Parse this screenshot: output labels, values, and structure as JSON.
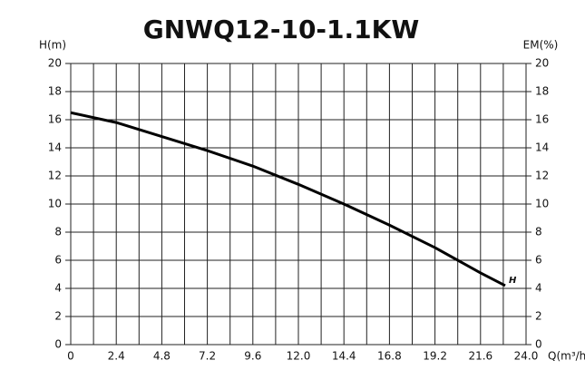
{
  "chart_data": {
    "type": "line",
    "title": "GNWQ12-10-1.1KW",
    "y_label": "H(m)",
    "y2_label": "EM(%)",
    "x_label": "Q(m³/h)",
    "xlim": [
      0,
      24
    ],
    "xticks": [
      0,
      2.4,
      4.8,
      7.2,
      9.6,
      {
        "value": 12,
        "label": "12.0"
      },
      14.4,
      16.8,
      19.2,
      21.6,
      {
        "value": 24,
        "label": "24.0"
      }
    ],
    "xminor": [
      1.2,
      3.6,
      6,
      8.4,
      10.8,
      13.2,
      15.6,
      18,
      20.4,
      22.8
    ],
    "ylim": [
      0,
      20
    ],
    "yticks": [
      0,
      2,
      4,
      6,
      8,
      10,
      12,
      14,
      16,
      18,
      20
    ],
    "y2lim": [
      0,
      20
    ],
    "y2ticks": [
      0,
      2,
      4,
      6,
      8,
      10,
      12,
      14,
      16,
      18,
      20
    ],
    "grid": true,
    "x": [
      0,
      2.4,
      4.8,
      7.2,
      9.6,
      12,
      14.4,
      16.8,
      19.2,
      21.6,
      22.9
    ],
    "series": [
      {
        "name": "H",
        "color": "#000000",
        "values": [
          16.5,
          15.8,
          14.8,
          13.8,
          12.7,
          11.4,
          10.0,
          8.5,
          6.9,
          5.1,
          4.2
        ]
      }
    ]
  }
}
